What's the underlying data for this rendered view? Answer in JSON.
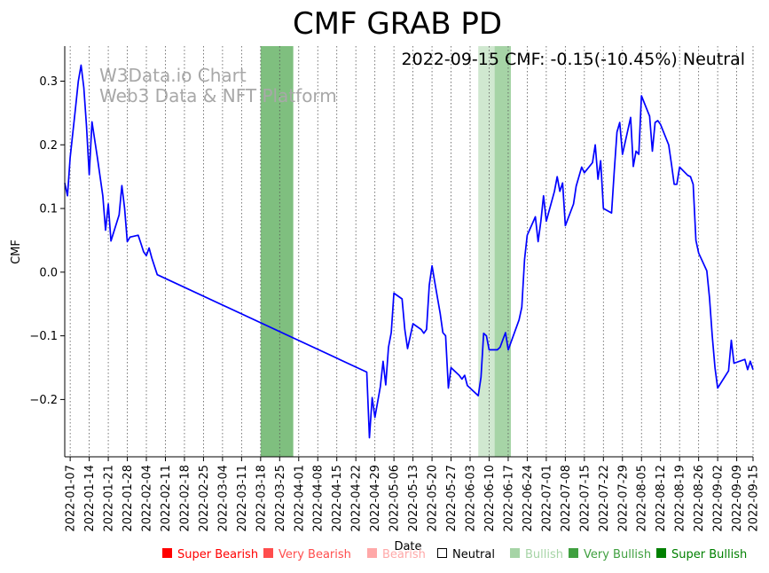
{
  "chart_data": {
    "type": "line",
    "title": "CMF GRAB PD",
    "info_text": "2022-09-15 CMF: -0.15(-10.45%) Neutral",
    "watermark": [
      "W3Data.io Chart",
      "Web3 Data & NFT Platform"
    ],
    "xlabel": "Date",
    "ylabel": "CMF",
    "x_range": [
      "2022-01-05",
      "2022-09-15"
    ],
    "ylim": [
      -0.29,
      0.355
    ],
    "y_ticks": [
      -0.2,
      -0.1,
      0.0,
      0.1,
      0.2,
      0.3
    ],
    "y_tick_labels": [
      "−0.2",
      "−0.1",
      "0.0",
      "0.1",
      "0.2",
      "0.3"
    ],
    "x_ticks": [
      "2022-01-07",
      "2022-01-14",
      "2022-01-21",
      "2022-01-28",
      "2022-02-04",
      "2022-02-11",
      "2022-02-18",
      "2022-02-25",
      "2022-03-04",
      "2022-03-11",
      "2022-03-18",
      "2022-03-25",
      "2022-04-01",
      "2022-04-08",
      "2022-04-15",
      "2022-04-22",
      "2022-04-29",
      "2022-05-06",
      "2022-05-13",
      "2022-05-20",
      "2022-05-27",
      "2022-06-03",
      "2022-06-10",
      "2022-06-17",
      "2022-06-24",
      "2022-07-01",
      "2022-07-08",
      "2022-07-15",
      "2022-07-22",
      "2022-07-29",
      "2022-08-05",
      "2022-08-12",
      "2022-08-19",
      "2022-08-26",
      "2022-09-02",
      "2022-09-09",
      "2022-09-15"
    ],
    "shaded_regions": [
      {
        "start": "2022-03-18",
        "end": "2022-03-30",
        "signal": "Very Bullish",
        "color": "#7fbf7f"
      },
      {
        "start": "2022-06-06",
        "end": "2022-06-12",
        "signal": "Bullish",
        "color": "#d0e8d0"
      },
      {
        "start": "2022-06-12",
        "end": "2022-06-18",
        "signal": "Bullish",
        "color": "#a6d4a6"
      }
    ],
    "series": [
      {
        "name": "CMF",
        "color": "#0000ff",
        "points": [
          [
            "2022-01-05",
            0.14
          ],
          [
            "2022-01-06",
            0.12
          ],
          [
            "2022-01-07",
            0.18
          ],
          [
            "2022-01-08",
            0.22
          ],
          [
            "2022-01-09",
            0.26
          ],
          [
            "2022-01-10",
            0.3
          ],
          [
            "2022-01-11",
            0.325
          ],
          [
            "2022-01-12",
            0.29
          ],
          [
            "2022-01-13",
            0.23
          ],
          [
            "2022-01-14",
            0.153
          ],
          [
            "2022-01-15",
            0.236
          ],
          [
            "2022-01-17",
            0.18
          ],
          [
            "2022-01-19",
            0.12
          ],
          [
            "2022-01-20",
            0.066
          ],
          [
            "2022-01-21",
            0.107
          ],
          [
            "2022-01-22",
            0.049
          ],
          [
            "2022-01-25",
            0.09
          ],
          [
            "2022-01-26",
            0.136
          ],
          [
            "2022-01-27",
            0.1
          ],
          [
            "2022-01-28",
            0.048
          ],
          [
            "2022-01-29",
            0.055
          ],
          [
            "2022-02-01",
            0.058
          ],
          [
            "2022-02-02",
            0.045
          ],
          [
            "2022-02-03",
            0.032
          ],
          [
            "2022-02-04",
            0.026
          ],
          [
            "2022-02-05",
            0.038
          ],
          [
            "2022-02-06",
            0.022
          ],
          [
            "2022-02-08",
            -0.004
          ],
          [
            "2022-04-26",
            -0.157
          ],
          [
            "2022-04-27",
            -0.26
          ],
          [
            "2022-04-28",
            -0.197
          ],
          [
            "2022-04-29",
            -0.228
          ],
          [
            "2022-05-01",
            -0.18
          ],
          [
            "2022-05-02",
            -0.14
          ],
          [
            "2022-05-03",
            -0.177
          ],
          [
            "2022-05-04",
            -0.118
          ],
          [
            "2022-05-05",
            -0.095
          ],
          [
            "2022-05-06",
            -0.033
          ],
          [
            "2022-05-09",
            -0.042
          ],
          [
            "2022-05-10",
            -0.09
          ],
          [
            "2022-05-11",
            -0.12
          ],
          [
            "2022-05-13",
            -0.081
          ],
          [
            "2022-05-16",
            -0.09
          ],
          [
            "2022-05-17",
            -0.096
          ],
          [
            "2022-05-18",
            -0.09
          ],
          [
            "2022-05-19",
            -0.02
          ],
          [
            "2022-05-20",
            0.01
          ],
          [
            "2022-05-21",
            -0.015
          ],
          [
            "2022-05-23",
            -0.065
          ],
          [
            "2022-05-24",
            -0.095
          ],
          [
            "2022-05-25",
            -0.1
          ],
          [
            "2022-05-26",
            -0.182
          ],
          [
            "2022-05-27",
            -0.15
          ],
          [
            "2022-05-30",
            -0.162
          ],
          [
            "2022-05-31",
            -0.168
          ],
          [
            "2022-06-01",
            -0.162
          ],
          [
            "2022-06-02",
            -0.178
          ],
          [
            "2022-06-06",
            -0.194
          ],
          [
            "2022-06-07",
            -0.165
          ],
          [
            "2022-06-08",
            -0.096
          ],
          [
            "2022-06-09",
            -0.1
          ],
          [
            "2022-06-10",
            -0.122
          ],
          [
            "2022-06-13",
            -0.122
          ],
          [
            "2022-06-14",
            -0.118
          ],
          [
            "2022-06-16",
            -0.095
          ],
          [
            "2022-06-17",
            -0.122
          ],
          [
            "2022-06-21",
            -0.075
          ],
          [
            "2022-06-22",
            -0.055
          ],
          [
            "2022-06-23",
            0.02
          ],
          [
            "2022-06-24",
            0.058
          ],
          [
            "2022-06-27",
            0.087
          ],
          [
            "2022-06-28",
            0.048
          ],
          [
            "2022-06-29",
            0.08
          ],
          [
            "2022-06-30",
            0.12
          ],
          [
            "2022-07-01",
            0.08
          ],
          [
            "2022-07-04",
            0.127
          ],
          [
            "2022-07-05",
            0.15
          ],
          [
            "2022-07-06",
            0.127
          ],
          [
            "2022-07-07",
            0.14
          ],
          [
            "2022-07-08",
            0.073
          ],
          [
            "2022-07-11",
            0.107
          ],
          [
            "2022-07-12",
            0.135
          ],
          [
            "2022-07-14",
            0.165
          ],
          [
            "2022-07-15",
            0.156
          ],
          [
            "2022-07-18",
            0.172
          ],
          [
            "2022-07-19",
            0.2
          ],
          [
            "2022-07-20",
            0.146
          ],
          [
            "2022-07-21",
            0.175
          ],
          [
            "2022-07-22",
            0.1
          ],
          [
            "2022-07-25",
            0.093
          ],
          [
            "2022-07-26",
            0.16
          ],
          [
            "2022-07-27",
            0.22
          ],
          [
            "2022-07-28",
            0.235
          ],
          [
            "2022-07-29",
            0.185
          ],
          [
            "2022-08-01",
            0.243
          ],
          [
            "2022-08-02",
            0.166
          ],
          [
            "2022-08-03",
            0.19
          ],
          [
            "2022-08-04",
            0.185
          ],
          [
            "2022-08-05",
            0.277
          ],
          [
            "2022-08-08",
            0.245
          ],
          [
            "2022-08-09",
            0.19
          ],
          [
            "2022-08-10",
            0.235
          ],
          [
            "2022-08-11",
            0.238
          ],
          [
            "2022-08-12",
            0.232
          ],
          [
            "2022-08-15",
            0.2
          ],
          [
            "2022-08-16",
            0.17
          ],
          [
            "2022-08-17",
            0.138
          ],
          [
            "2022-08-18",
            0.138
          ],
          [
            "2022-08-19",
            0.165
          ],
          [
            "2022-08-22",
            0.152
          ],
          [
            "2022-08-23",
            0.15
          ],
          [
            "2022-08-24",
            0.138
          ],
          [
            "2022-08-25",
            0.05
          ],
          [
            "2022-08-26",
            0.03
          ],
          [
            "2022-08-29",
            0.002
          ],
          [
            "2022-08-30",
            -0.04
          ],
          [
            "2022-08-31",
            -0.1
          ],
          [
            "2022-09-01",
            -0.15
          ],
          [
            "2022-09-02",
            -0.182
          ],
          [
            "2022-09-06",
            -0.155
          ],
          [
            "2022-09-07",
            -0.107
          ],
          [
            "2022-09-08",
            -0.143
          ],
          [
            "2022-09-12",
            -0.137
          ],
          [
            "2022-09-13",
            -0.153
          ],
          [
            "2022-09-14",
            -0.14
          ],
          [
            "2022-09-15",
            -0.153
          ]
        ]
      }
    ],
    "legend": [
      {
        "label": "Super Bearish",
        "color": "#ff0000"
      },
      {
        "label": "Very Bearish",
        "color": "#ff4d4d"
      },
      {
        "label": "Bearish",
        "color": "#ffa8a8"
      },
      {
        "label": "Neutral",
        "color": "#000000",
        "hollow": true
      },
      {
        "label": "Bullish",
        "color": "#a6d4a6"
      },
      {
        "label": "Very Bullish",
        "color": "#40a040"
      },
      {
        "label": "Super Bullish",
        "color": "#008000"
      }
    ]
  }
}
